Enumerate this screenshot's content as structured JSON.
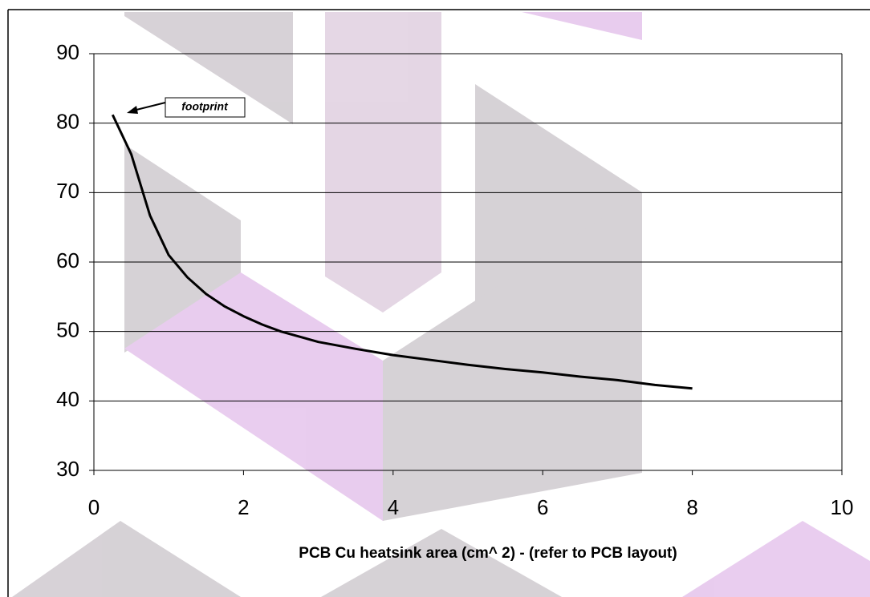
{
  "chart_data": {
    "type": "line",
    "x_label": "PCB Cu heatsink area (cm^ 2) -  (refer to PCB layout)",
    "annotation": "footprint",
    "x": [
      0.25,
      0.5,
      0.75,
      1.0,
      1.25,
      1.5,
      1.75,
      2.0,
      2.25,
      2.5,
      3.0,
      3.5,
      4.0,
      4.5,
      5.0,
      5.5,
      6.0,
      6.5,
      7.0,
      7.5,
      8.0
    ],
    "series": [
      {
        "color": "#000000",
        "values": [
          81.2,
          75.5,
          66.7,
          61.0,
          57.8,
          55.4,
          53.6,
          52.2,
          51.0,
          50.0,
          48.5,
          47.5,
          46.6,
          45.9,
          45.2,
          44.6,
          44.1,
          43.5,
          43.0,
          42.3,
          41.8
        ]
      }
    ],
    "xlim": [
      0,
      10
    ],
    "xticks": [
      0,
      2,
      4,
      6,
      8,
      10
    ],
    "ylim": [
      30,
      90
    ],
    "yticks": [
      30,
      40,
      50,
      60,
      70,
      80,
      90
    ],
    "grid": true
  }
}
